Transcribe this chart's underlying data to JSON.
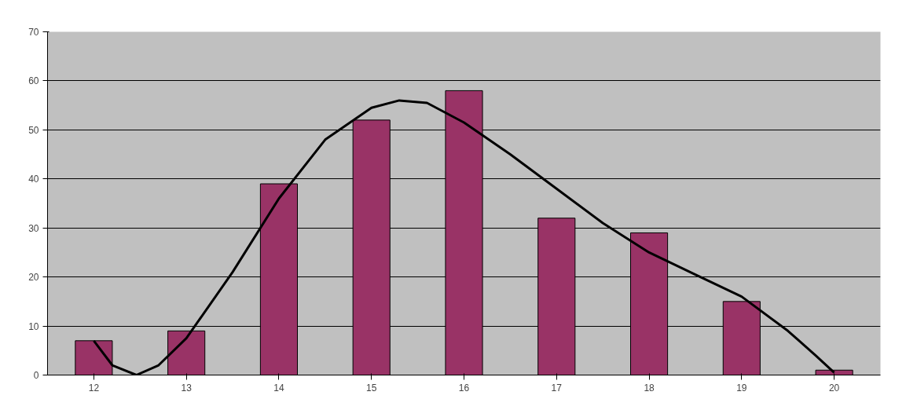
{
  "chart_data": {
    "type": "bar",
    "x": [
      12,
      13,
      14,
      15,
      16,
      17,
      18,
      19,
      20
    ],
    "xlim": [
      11.5,
      20.5
    ],
    "xticks": [
      12,
      13,
      14,
      15,
      16,
      17,
      18,
      19,
      20
    ],
    "ylim": [
      0,
      70
    ],
    "yticks": [
      0,
      10,
      20,
      30,
      40,
      50,
      60,
      70
    ],
    "grid": "y",
    "series": [
      {
        "color": "#993366",
        "values": [
          7,
          9,
          39,
          52,
          58,
          32,
          29,
          15,
          1
        ]
      },
      {
        "type": "line",
        "color": "#000000",
        "x": [
          12,
          12.2,
          12.46,
          12.7,
          13,
          13.5,
          14,
          14.5,
          15,
          15.3,
          15.6,
          16,
          16.5,
          17,
          17.5,
          18,
          18.5,
          19,
          19.5,
          19.8,
          20
        ],
        "values": [
          7,
          2,
          0,
          2,
          7.5,
          21,
          36,
          48,
          54.5,
          56,
          55.5,
          51.5,
          45,
          38,
          31,
          25,
          20.5,
          16,
          9,
          4,
          0.5
        ]
      }
    ]
  }
}
